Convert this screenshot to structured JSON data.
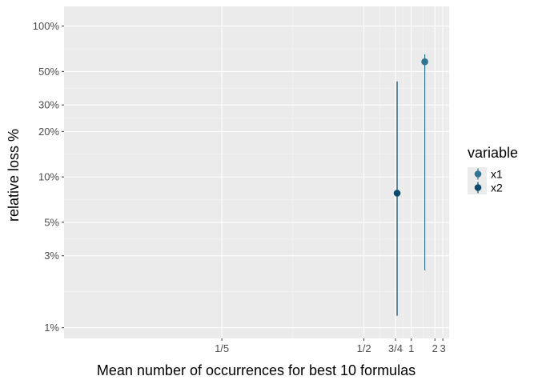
{
  "chart_data": {
    "type": "scatter",
    "title": "",
    "xlabel": "Mean number of occurrences for best 10 formulas",
    "ylabel": "relative loss %",
    "x_scale": "reciprocal",
    "y_scale": "log",
    "xlim": [
      0.12,
      5
    ],
    "ylim": [
      0.85,
      135
    ],
    "x_ticks": [
      {
        "value": 0.2,
        "label": "1/5"
      },
      {
        "value": 0.5,
        "label": "1/2"
      },
      {
        "value": 0.75,
        "label": "3/4"
      },
      {
        "value": 1,
        "label": "1"
      },
      {
        "value": 2,
        "label": "2"
      },
      {
        "value": 3,
        "label": "3"
      }
    ],
    "y_ticks": [
      {
        "value": 1,
        "label": "1%"
      },
      {
        "value": 3,
        "label": "3%"
      },
      {
        "value": 5,
        "label": "5%"
      },
      {
        "value": 10,
        "label": "10%"
      },
      {
        "value": 20,
        "label": "20%"
      },
      {
        "value": 30,
        "label": "30%"
      },
      {
        "value": 50,
        "label": "50%"
      },
      {
        "value": 100,
        "label": "100%"
      }
    ],
    "grid": true,
    "legend": {
      "title": "variable",
      "placement": "right"
    },
    "series": [
      {
        "name": "x1",
        "color": "#2f7592",
        "points": [
          {
            "x": 1.4,
            "y": 58,
            "ymin": 2.4,
            "ymax": 65
          }
        ]
      },
      {
        "name": "x2",
        "color": "#0b4a6c",
        "points": [
          {
            "x": 0.77,
            "y": 7.8,
            "ymin": 1.2,
            "ymax": 43
          }
        ]
      }
    ]
  }
}
